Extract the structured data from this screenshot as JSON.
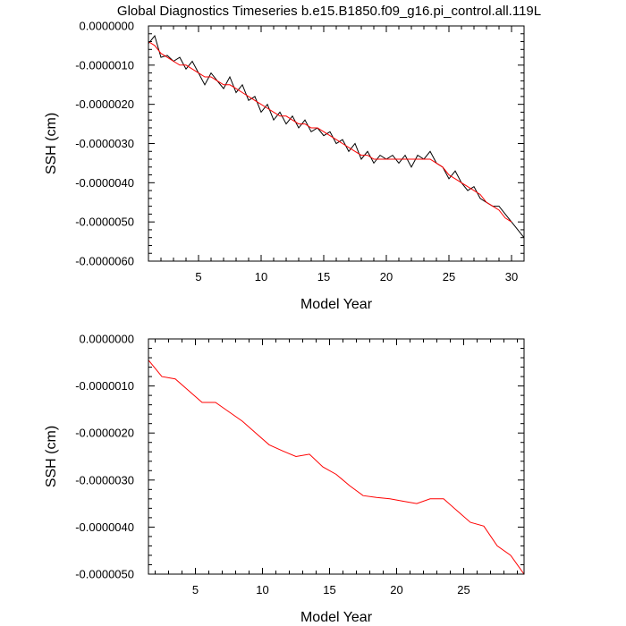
{
  "title": "Global Diagnostics Timeseries b.e15.B1850.f09_g16.pi_control.all.119L",
  "chart_data": [
    {
      "type": "line",
      "xlabel": "Model Year",
      "ylabel": "SSH (cm)",
      "xlim": [
        1,
        31
      ],
      "ylim": [
        -6e-06,
        0.0
      ],
      "xticks": [
        5,
        10,
        15,
        20,
        25,
        30
      ],
      "yticks": [
        0.0,
        -1e-06,
        -2e-06,
        -3e-06,
        -4e-06,
        -5e-06,
        -6e-06
      ],
      "ytick_labels": [
        "0.0000000",
        "-0.0000010",
        "-0.0000020",
        "-0.0000030",
        "-0.0000040",
        "-0.0000050",
        "-0.0000060"
      ],
      "xtick_labels": [
        "5",
        "10",
        "15",
        "20",
        "25",
        "30"
      ],
      "series": [
        {
          "color": "#000000",
          "x": [
            1.0,
            1.5,
            2.0,
            2.5,
            3.0,
            3.5,
            4.0,
            4.5,
            5.0,
            5.5,
            6.0,
            6.5,
            7.0,
            7.5,
            8.0,
            8.5,
            9.0,
            9.5,
            10.0,
            10.5,
            11.0,
            11.5,
            12.0,
            12.5,
            13.0,
            13.5,
            14.0,
            14.5,
            15.0,
            15.5,
            16.0,
            16.5,
            17.0,
            17.5,
            18.0,
            18.5,
            19.0,
            19.5,
            20.0,
            20.5,
            21.0,
            21.5,
            22.0,
            22.5,
            23.0,
            23.5,
            24.0,
            24.5,
            25.0,
            25.5,
            26.0,
            26.5,
            27.0,
            27.5,
            28.0,
            28.5,
            29.0,
            29.5,
            30.0,
            30.5,
            31.0
          ],
          "values": [
            -4.5e-07,
            -2.5e-07,
            -8e-07,
            -7.5e-07,
            -9e-07,
            -8e-07,
            -1.1e-06,
            -9e-07,
            -1.2e-06,
            -1.5e-06,
            -1.2e-06,
            -1.4e-06,
            -1.6e-06,
            -1.3e-06,
            -1.7e-06,
            -1.5e-06,
            -1.9e-06,
            -1.8e-06,
            -2.2e-06,
            -2e-06,
            -2.4e-06,
            -2.2e-06,
            -2.5e-06,
            -2.3e-06,
            -2.6e-06,
            -2.4e-06,
            -2.7e-06,
            -2.6e-06,
            -2.8e-06,
            -2.7e-06,
            -3e-06,
            -2.9e-06,
            -3.2e-06,
            -3e-06,
            -3.4e-06,
            -3.2e-06,
            -3.5e-06,
            -3.3e-06,
            -3.4e-06,
            -3.3e-06,
            -3.5e-06,
            -3.3e-06,
            -3.6e-06,
            -3.3e-06,
            -3.4e-06,
            -3.2e-06,
            -3.5e-06,
            -3.6e-06,
            -3.9e-06,
            -3.7e-06,
            -4e-06,
            -4.2e-06,
            -4.1e-06,
            -4.4e-06,
            -4.5e-06,
            -4.6e-06,
            -4.6e-06,
            -4.8e-06,
            -5e-06,
            -5.2e-06,
            -5.4e-06
          ]
        },
        {
          "color": "#ff0000",
          "x": [
            1.0,
            1.5,
            2.0,
            2.5,
            3.0,
            3.5,
            4.0,
            4.5,
            5.0,
            5.5,
            6.0,
            6.5,
            7.0,
            7.5,
            8.0,
            8.5,
            9.0,
            9.5,
            10.0,
            10.5,
            11.0,
            11.5,
            12.0,
            12.5,
            13.0,
            13.5,
            14.0,
            14.5,
            15.0,
            15.5,
            16.0,
            16.5,
            17.0,
            17.5,
            18.0,
            18.5,
            19.0,
            19.5,
            20.0,
            20.5,
            21.0,
            21.5,
            22.0,
            22.5,
            23.0,
            23.5,
            24.0,
            24.5,
            25.0,
            25.5,
            26.0,
            26.5,
            27.0,
            27.5,
            28.0,
            28.5,
            29.0,
            29.5,
            30.0
          ],
          "values": [
            -4e-07,
            -5e-07,
            -7e-07,
            -8e-07,
            -9e-07,
            -1e-06,
            -1e-06,
            -1.1e-06,
            -1.2e-06,
            -1.3e-06,
            -1.3e-06,
            -1.4e-06,
            -1.5e-06,
            -1.5e-06,
            -1.6e-06,
            -1.7e-06,
            -1.8e-06,
            -1.9e-06,
            -2e-06,
            -2.1e-06,
            -2.2e-06,
            -2.3e-06,
            -2.3e-06,
            -2.4e-06,
            -2.5e-06,
            -2.5e-06,
            -2.6e-06,
            -2.6e-06,
            -2.7e-06,
            -2.8e-06,
            -2.9e-06,
            -3e-06,
            -3.1e-06,
            -3.2e-06,
            -3.3e-06,
            -3.3e-06,
            -3.4e-06,
            -3.4e-06,
            -3.4e-06,
            -3.4e-06,
            -3.4e-06,
            -3.4e-06,
            -3.4e-06,
            -3.4e-06,
            -3.4e-06,
            -3.4e-06,
            -3.5e-06,
            -3.6e-06,
            -3.8e-06,
            -3.9e-06,
            -4e-06,
            -4.1e-06,
            -4.2e-06,
            -4.3e-06,
            -4.5e-06,
            -4.6e-06,
            -4.7e-06,
            -4.9e-06,
            -5e-06
          ]
        }
      ]
    },
    {
      "type": "line",
      "xlabel": "Model Year",
      "ylabel": "SSH (cm)",
      "xlim": [
        1.5,
        29.5
      ],
      "ylim": [
        -5e-06,
        0.0
      ],
      "xticks": [
        5,
        10,
        15,
        20,
        25
      ],
      "yticks": [
        0.0,
        -1e-06,
        -2e-06,
        -3e-06,
        -4e-06,
        -5e-06
      ],
      "ytick_labels": [
        "0.0000000",
        "-0.0000010",
        "-0.0000020",
        "-0.0000030",
        "-0.0000040",
        "-0.0000050"
      ],
      "xtick_labels": [
        "5",
        "10",
        "15",
        "20",
        "25"
      ],
      "series": [
        {
          "color": "#ff0000",
          "x": [
            1.5,
            2.5,
            3.5,
            4.5,
            5.5,
            6.5,
            7.5,
            8.5,
            9.5,
            10.5,
            11.5,
            12.5,
            13.5,
            14.5,
            15.5,
            16.5,
            17.5,
            18.5,
            19.5,
            20.5,
            21.5,
            22.5,
            23.5,
            24.5,
            25.5,
            26.5,
            27.5,
            28.5,
            29.5
          ],
          "values": [
            -4.5e-07,
            -8e-07,
            -8.5e-07,
            -1.1e-06,
            -1.35e-06,
            -1.35e-06,
            -1.55e-06,
            -1.75e-06,
            -2e-06,
            -2.25e-06,
            -2.38e-06,
            -2.5e-06,
            -2.45e-06,
            -2.72e-06,
            -2.88e-06,
            -3.12e-06,
            -3.33e-06,
            -3.37e-06,
            -3.4e-06,
            -3.45e-06,
            -3.5e-06,
            -3.4e-06,
            -3.4e-06,
            -3.65e-06,
            -3.9e-06,
            -3.98e-06,
            -4.4e-06,
            -4.6e-06,
            -5e-06
          ]
        }
      ]
    }
  ]
}
